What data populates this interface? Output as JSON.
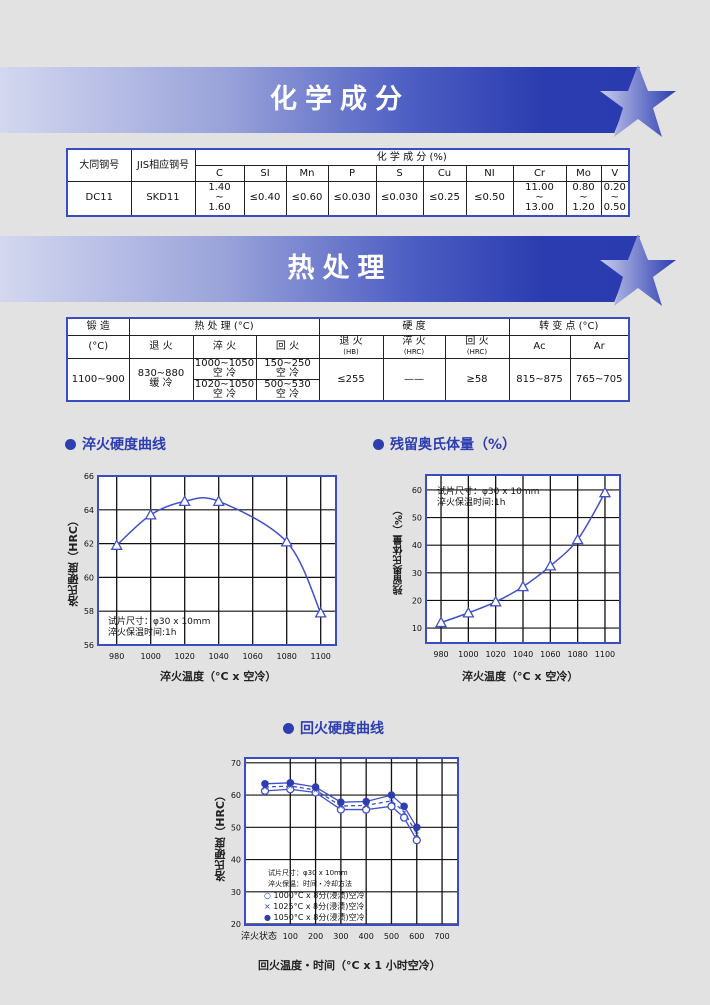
{
  "colors": {
    "accent": "#2d3eb0",
    "table_border": "#3a4cc0",
    "curve": "#4050c8"
  },
  "sections": {
    "chem_title": "化学成分",
    "heat_title": "热处理"
  },
  "chem_table": {
    "h_daido": "大同钢号",
    "h_jis": "JIS相应钢号",
    "h_group": "化 学 成 分 (%)",
    "elements": [
      "C",
      "SI",
      "Mn",
      "P",
      "S",
      "Cu",
      "NI",
      "Cr",
      "Mo",
      "V"
    ],
    "row": {
      "daido": "DC11",
      "jis": "SKD11",
      "C": "1.40\n~\n1.60",
      "SI": "≤0.40",
      "Mn": "≤0.60",
      "P": "≤0.030",
      "S": "≤0.030",
      "Cu": "≤0.25",
      "NI": "≤0.50",
      "Cr": "11.00\n~\n13.00",
      "Mo": "0.80\n~\n1.20",
      "V": "0.20\n~\n0.50"
    }
  },
  "heat_table": {
    "h_forge": "锻 造",
    "h_forge_unit": "(°C)",
    "h_heat": "热 处 理 (°C)",
    "h_hard": "硬 度",
    "h_trans": "转 变 点 (°C)",
    "h_anneal": "退 火",
    "h_quench": "淬 火",
    "h_temper": "回 火",
    "h_hard_anneal": "退 火",
    "u_hb": "(HB)",
    "h_hard_quench": "淬 火",
    "u_hrc1": "(HRC)",
    "h_hard_temper": "回 火",
    "u_hrc2": "(HRC)",
    "h_ac": "Ac",
    "h_ar": "Ar",
    "forge": "1100~900",
    "anneal": "830~880\n缓 冷",
    "quench1": "1000~1050\n空 冷",
    "quench2": "1020~1050\n空 冷",
    "temper1": "150~250\n空 冷",
    "temper2": "500~530\n空 冷",
    "hb": "≤255",
    "hrc_quench": "——",
    "hrc_temper": "≥58",
    "ac": "815~875",
    "ar": "765~705"
  },
  "chart_data": [
    {
      "type": "line",
      "title": "淬火硬度曲线",
      "xlabel": "淬火温度（°C x 空冷）",
      "ylabel": "洛氏硬度（HRC）",
      "x": [
        980,
        1000,
        1020,
        1040,
        1080,
        1100
      ],
      "values": [
        61.9,
        63.7,
        64.5,
        64.5,
        62.1,
        57.9
      ],
      "xticks": [
        "980",
        "1000",
        "1020",
        "1040",
        "1060",
        "1080",
        "1100"
      ],
      "yticks": [
        "56",
        "58",
        "60",
        "62",
        "64",
        "66"
      ],
      "ylim": [
        56,
        66
      ],
      "grid": true,
      "marker": "triangle",
      "notes": [
        "试片尺寸：φ30 x 10mm",
        "淬火保温时间:1h"
      ]
    },
    {
      "type": "line",
      "title": "残留奥氏体量（%）",
      "xlabel": "淬火温度（°C x 空冷）",
      "ylabel": "残留奥氏体量（%）",
      "x": [
        980,
        1000,
        1020,
        1040,
        1060,
        1080,
        1100
      ],
      "values": [
        12,
        15.5,
        19.5,
        25,
        32.5,
        42,
        59
      ],
      "xticks": [
        "980",
        "1000",
        "1020",
        "1040",
        "1060",
        "1080",
        "1100"
      ],
      "yticks": [
        "10",
        "20",
        "30",
        "40",
        "50",
        "60"
      ],
      "grid": true,
      "marker": "triangle",
      "notes": [
        "试片尺寸：φ30 x 10mm",
        "淬火保温时间:1h"
      ]
    },
    {
      "type": "line",
      "title": "回火硬度曲线",
      "xlabel": "回火温度・时间（°C x 1 小时空冷）",
      "ylabel": "洛氏硬度（HRC）",
      "x": [
        0,
        100,
        200,
        300,
        400,
        500,
        550,
        600
      ],
      "xticks": [
        "淬火状态",
        "100",
        "200",
        "300",
        "400",
        "500",
        "600",
        "700"
      ],
      "yticks": [
        "20",
        "30",
        "40",
        "50",
        "60",
        "70"
      ],
      "ylim": [
        20,
        70
      ],
      "grid": true,
      "notes": [
        "试片尺寸：φ30 x 10mm",
        "淬火保温：时间・冷却方法"
      ],
      "series": [
        {
          "name": "1000°C x 8分(浸渍)空冷",
          "marker": "open-circle",
          "values": [
            61.3,
            61.8,
            60.8,
            55.5,
            55.5,
            56.5,
            53,
            46
          ]
        },
        {
          "name": "1025°C x 8分(浸渍)空冷",
          "marker": "x",
          "values": [
            62.5,
            62.8,
            61.6,
            56.6,
            56.8,
            58.2,
            54.8,
            48
          ]
        },
        {
          "name": "1050°C x 8分(浸渍)空冷",
          "marker": "filled-circle",
          "values": [
            63.5,
            63.8,
            62.5,
            57.8,
            58,
            60,
            56.5,
            50
          ]
        }
      ]
    }
  ]
}
